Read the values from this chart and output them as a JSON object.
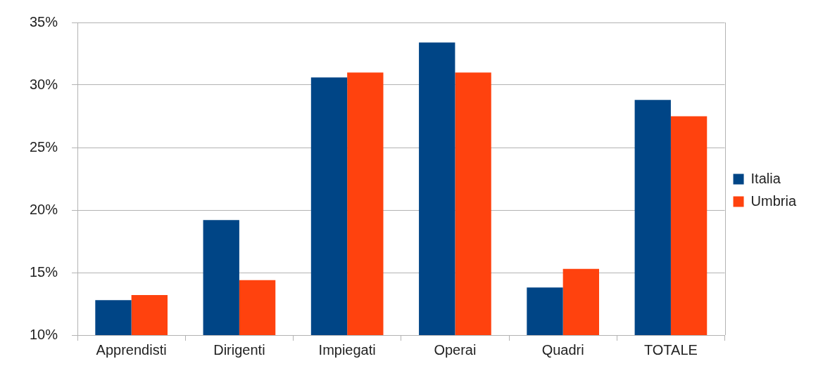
{
  "chart_data": {
    "type": "bar",
    "categories": [
      "Apprendisti",
      "Dirigenti",
      "Impiegati",
      "Operai",
      "Quadri",
      "TOTALE"
    ],
    "series": [
      {
        "name": "Italia",
        "color": "#004586",
        "values": [
          12.8,
          19.2,
          30.6,
          33.4,
          13.8,
          28.8
        ]
      },
      {
        "name": "Umbria",
        "color": "#ff420e",
        "values": [
          13.2,
          14.4,
          31.0,
          31.0,
          15.3,
          27.5
        ]
      }
    ],
    "ylim": [
      10,
      35
    ],
    "yticks": [
      {
        "value": 10,
        "label": "10%"
      },
      {
        "value": 15,
        "label": "15%"
      },
      {
        "value": 20,
        "label": "20%"
      },
      {
        "value": 25,
        "label": "25%"
      },
      {
        "value": 30,
        "label": "30%"
      },
      {
        "value": 35,
        "label": "35%"
      }
    ],
    "grid": "y",
    "legend": "right"
  }
}
